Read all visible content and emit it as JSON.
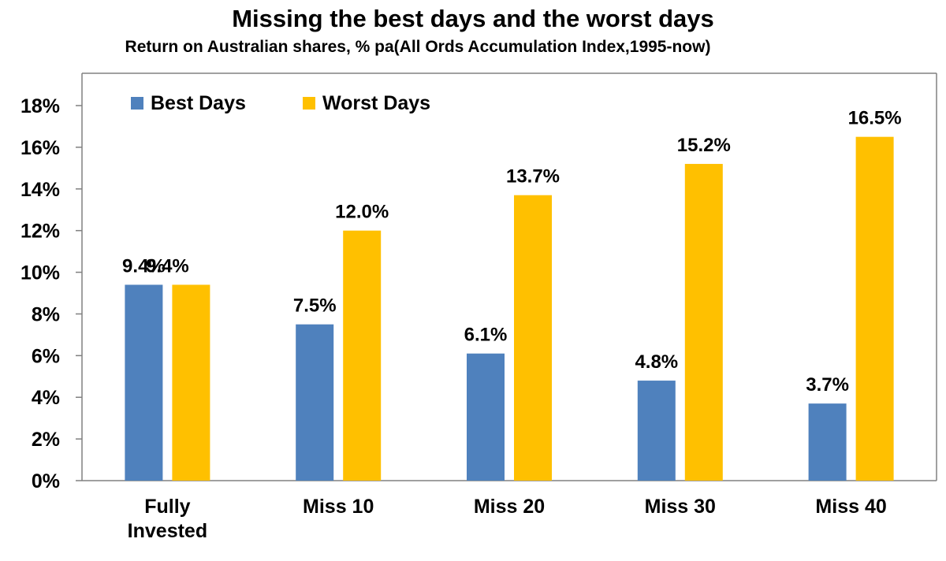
{
  "chart_data": {
    "type": "bar",
    "title": "Missing the best days and the worst days",
    "subtitle": "Return on Australian shares, % pa(All Ords Accumulation Index,1995-now)",
    "xlabel": "",
    "ylabel": "",
    "ylim": [
      0,
      18
    ],
    "ytick_step": 2,
    "ytick_labels": [
      "0%",
      "2%",
      "4%",
      "6%",
      "8%",
      "10%",
      "12%",
      "14%",
      "16%",
      "18%"
    ],
    "categories": [
      [
        "Fully",
        "Invested"
      ],
      [
        "Miss 10"
      ],
      [
        "Miss 20"
      ],
      [
        "Miss 30"
      ],
      [
        "Miss 40"
      ]
    ],
    "series": [
      {
        "name": "Best Days",
        "color": "#4F81BD",
        "values": [
          9.4,
          7.5,
          6.1,
          4.8,
          3.7
        ],
        "labels": [
          "9.4%",
          "7.5%",
          "6.1%",
          "4.8%",
          "3.7%"
        ]
      },
      {
        "name": "Worst Days",
        "color": "#FFC000",
        "values": [
          9.4,
          12.0,
          13.7,
          15.2,
          16.5
        ],
        "labels": [
          "",
          "12.0%",
          "13.7%",
          "15.2%",
          "16.5%"
        ]
      }
    ],
    "shared_labels": [
      "9.4%",
      "",
      "",
      "",
      ""
    ],
    "legend_position": "top-left",
    "grid": false
  }
}
